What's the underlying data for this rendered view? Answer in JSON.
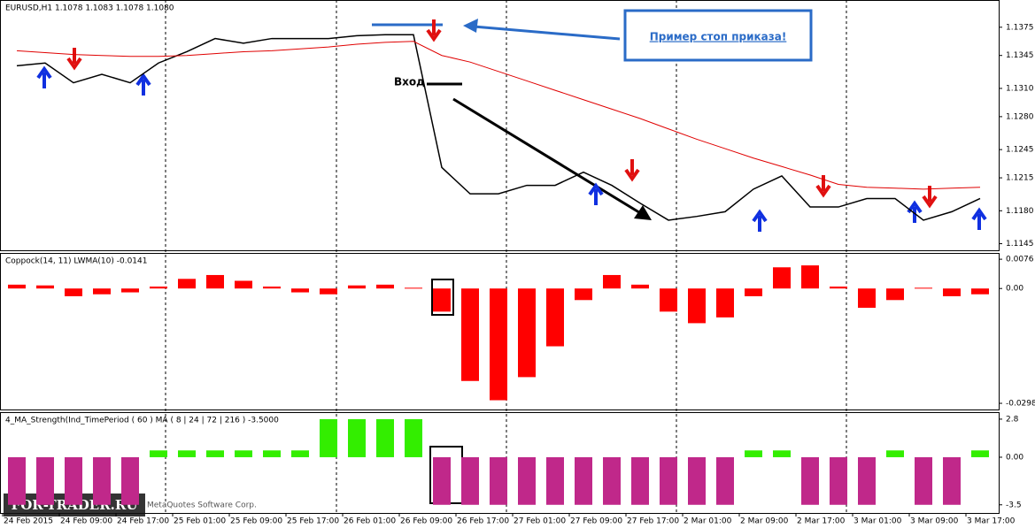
{
  "chart_data": [
    {
      "type": "line",
      "title": "EURUSD,H1  1.1078 1.1083 1.1078 1.1080",
      "annotations": [
        "Пример стоп приказа!",
        "Вход"
      ],
      "watermark": "FOR-TRADER.RU",
      "copyright": "MetaQuotes Software Corp.",
      "categories": [
        "24 Feb 2015",
        null,
        "24 Feb 09:00",
        null,
        "24 Feb 17:00",
        null,
        "25 Feb 01:00",
        null,
        "25 Feb 09:00",
        null,
        "25 Feb 17:00",
        null,
        "26 Feb 01:00",
        null,
        "26 Feb 09:00",
        null,
        "26 Feb 17:00",
        null,
        "27 Feb 01:00",
        null,
        "27 Feb 09:00",
        null,
        "27 Feb 17:00",
        null,
        "2 Mar 01:00",
        null,
        "2 Mar 09:00",
        null,
        "2 Mar 17:00",
        null,
        "3 Mar 01:00",
        null,
        "3 Mar 09:00",
        null,
        "3 Mar 17:00"
      ],
      "series": [
        {
          "color": "#000000",
          "values": [
            1.1334,
            1.1337,
            1.1316,
            1.1325,
            1.1316,
            1.1337,
            1.1349,
            1.1363,
            1.1358,
            1.1363,
            1.1363,
            1.1363,
            1.1366,
            1.1367,
            1.1367,
            1.1226,
            1.1198,
            1.1198,
            1.1207,
            1.1207,
            1.1221,
            1.1207,
            1.1188,
            1.117,
            1.1174,
            1.1179,
            1.1203,
            1.1217,
            1.1184,
            1.1184,
            1.1193,
            1.1193,
            1.117,
            1.1179,
            1.1193
          ]
        },
        {
          "color": "#e00000",
          "values": [
            1.135,
            1.1348,
            1.1346,
            1.1345,
            1.1344,
            1.1344,
            1.1345,
            1.1347,
            1.1349,
            1.135,
            1.1352,
            1.1354,
            1.1357,
            1.1359,
            1.136,
            1.1345,
            1.1338,
            1.1328,
            1.1318,
            1.1308,
            1.1298,
            1.1288,
            1.1278,
            1.1267,
            1.1256,
            1.1246,
            1.1236,
            1.1227,
            1.1218,
            1.1208,
            1.1205,
            1.1204,
            1.1203,
            1.1204,
            1.1205
          ]
        }
      ],
      "ylim": [
        1.1138,
        1.1403
      ],
      "yticks": [
        1.1375,
        1.1345,
        {
          "value": 1.131,
          "label": "1.1310"
        },
        {
          "value": 1.128,
          "label": "1.1280"
        },
        1.1245,
        1.1215,
        {
          "value": 1.118,
          "label": "1.1180"
        },
        1.1145
      ]
    },
    {
      "type": "bar",
      "title": "Coppock(14, 11) LWMA(10) -0.0141",
      "color": "#ff0000",
      "values": [
        0.001,
        0.0008,
        -0.002,
        -0.0015,
        -0.001,
        0.0005,
        0.0025,
        0.0035,
        0.002,
        0.0005,
        -0.001,
        -0.0015,
        0.0008,
        0.001,
        0.0002,
        -0.006,
        -0.024,
        -0.029,
        -0.023,
        -0.015,
        -0.003,
        0.0035,
        0.001,
        -0.006,
        -0.009,
        -0.0075,
        -0.002,
        0.0055,
        0.006,
        0.0005,
        -0.005,
        -0.003,
        0.0002,
        -0.002,
        -0.0015
      ],
      "ylim": [
        -0.0314,
        0.009
      ],
      "yticks": [
        0.0076,
        {
          "value": 0,
          "label": "0.00"
        },
        -0.0298
      ]
    },
    {
      "type": "bar",
      "title": "4_MA_Strength(Ind_TimePeriod ( 60 ) MA ( 8 | 24 | 72 | 216 ) -3.5000",
      "color": "#c0288a",
      "positive_color": "#33ee00",
      "values": [
        -3.5,
        -3.5,
        -3.5,
        -3.5,
        -3.5,
        0.5,
        0.5,
        0.5,
        0.5,
        0.5,
        0.5,
        2.8,
        2.8,
        2.8,
        2.8,
        -3.5,
        -3.5,
        -3.5,
        -3.5,
        -3.5,
        -3.5,
        -3.5,
        -3.5,
        -3.5,
        -3.5,
        -3.5,
        0.5,
        0.5,
        -3.5,
        -3.5,
        -3.5,
        0.5,
        -3.5,
        -3.5,
        0.5
      ],
      "ylim": [
        -4.1,
        3.25
      ],
      "yticks": [
        2.8,
        {
          "value": 0,
          "label": "0.00"
        },
        -3.5
      ]
    }
  ]
}
